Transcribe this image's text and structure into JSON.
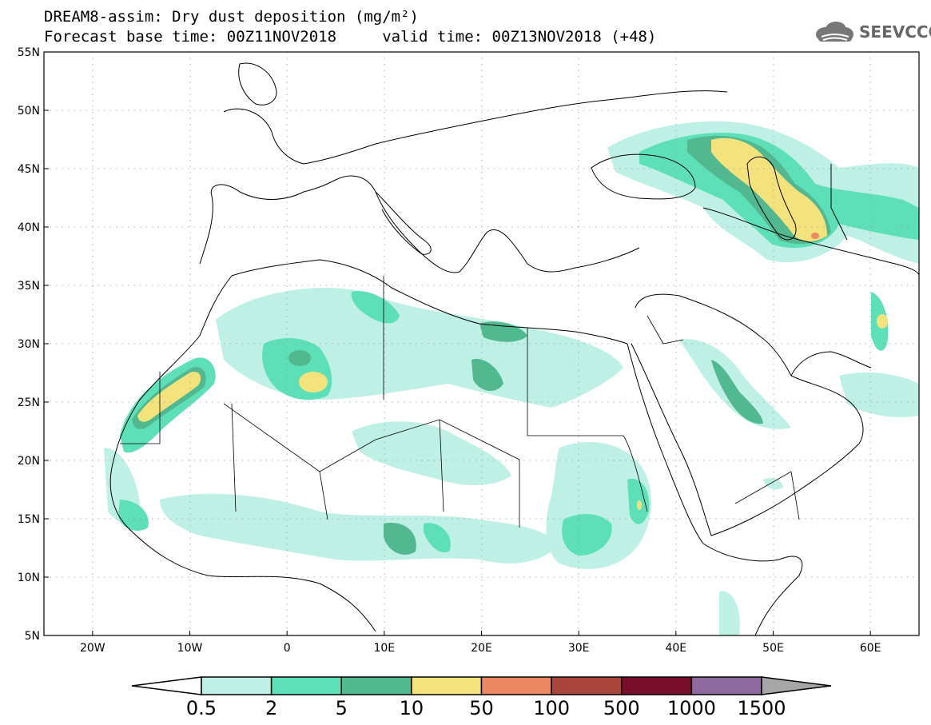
{
  "title": {
    "line1": "DREAM8-assim: Dry dust deposition (mg/m²)",
    "line2": "Forecast base time: 00Z11NOV2018     valid time: 00Z13NOV2018 (+48)"
  },
  "logo": {
    "text": "SEEVCCC",
    "icon": "cloud-icon"
  },
  "map": {
    "lon_range": [
      -25,
      65
    ],
    "lat_range": [
      5,
      55
    ],
    "lat_ticks": [
      {
        "value": 55,
        "label": "55N"
      },
      {
        "value": 50,
        "label": "50N"
      },
      {
        "value": 45,
        "label": "45N"
      },
      {
        "value": 40,
        "label": "40N"
      },
      {
        "value": 35,
        "label": "35N"
      },
      {
        "value": 30,
        "label": "30N"
      },
      {
        "value": 25,
        "label": "25N"
      },
      {
        "value": 20,
        "label": "20N"
      },
      {
        "value": 15,
        "label": "15N"
      },
      {
        "value": 10,
        "label": "10N"
      },
      {
        "value": 5,
        "label": "5N"
      }
    ],
    "lon_ticks": [
      {
        "value": -20,
        "label": "20W"
      },
      {
        "value": -10,
        "label": "10W"
      },
      {
        "value": 0,
        "label": "0"
      },
      {
        "value": 10,
        "label": "10E"
      },
      {
        "value": 20,
        "label": "20E"
      },
      {
        "value": 30,
        "label": "30E"
      },
      {
        "value": 40,
        "label": "40E"
      },
      {
        "value": 50,
        "label": "50E"
      },
      {
        "value": 60,
        "label": "60E"
      }
    ],
    "grid": "dotted"
  },
  "colorbar": {
    "labels": [
      "0.5",
      "2",
      "5",
      "10",
      "50",
      "100",
      "500",
      "1000",
      "1500"
    ],
    "colors": [
      "#ffffff",
      "#bff0e6",
      "#5de0b8",
      "#52b890",
      "#f4e37c",
      "#eb8a62",
      "#a8463c",
      "#7a0f2b",
      "#8c6a9e",
      "#a6a6a6"
    ]
  }
}
